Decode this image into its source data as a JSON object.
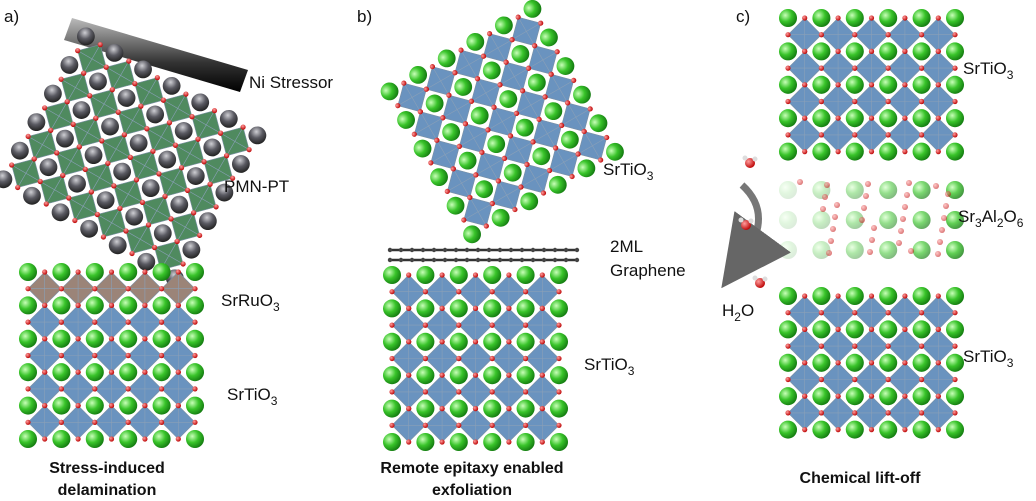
{
  "panels": [
    {
      "letter": "a)",
      "labels": {
        "stressor": "Ni Stressor",
        "film": "PMN-PT",
        "electrode": [
          "SrRuO",
          "3"
        ],
        "substrate": [
          "SrTiO",
          "3"
        ]
      },
      "caption": [
        "Stress-induced",
        "delamination"
      ]
    },
    {
      "letter": "b)",
      "labels": {
        "film": [
          "SrTiO",
          "3"
        ],
        "interlayer": [
          "2ML",
          "Graphene"
        ],
        "substrate": [
          "SrTiO",
          "3"
        ]
      },
      "caption": [
        "Remote epitaxy enabled",
        "exfoliation"
      ]
    },
    {
      "letter": "c)",
      "labels": {
        "film": [
          "SrTiO",
          "3"
        ],
        "sacrificial": [
          "Sr",
          "3",
          "Al",
          "2",
          "O",
          "6"
        ],
        "solvent": [
          "H",
          "2",
          "O"
        ],
        "substrate": [
          "SrTiO",
          "3"
        ]
      },
      "caption": [
        "Chemical lift-off"
      ]
    }
  ]
}
